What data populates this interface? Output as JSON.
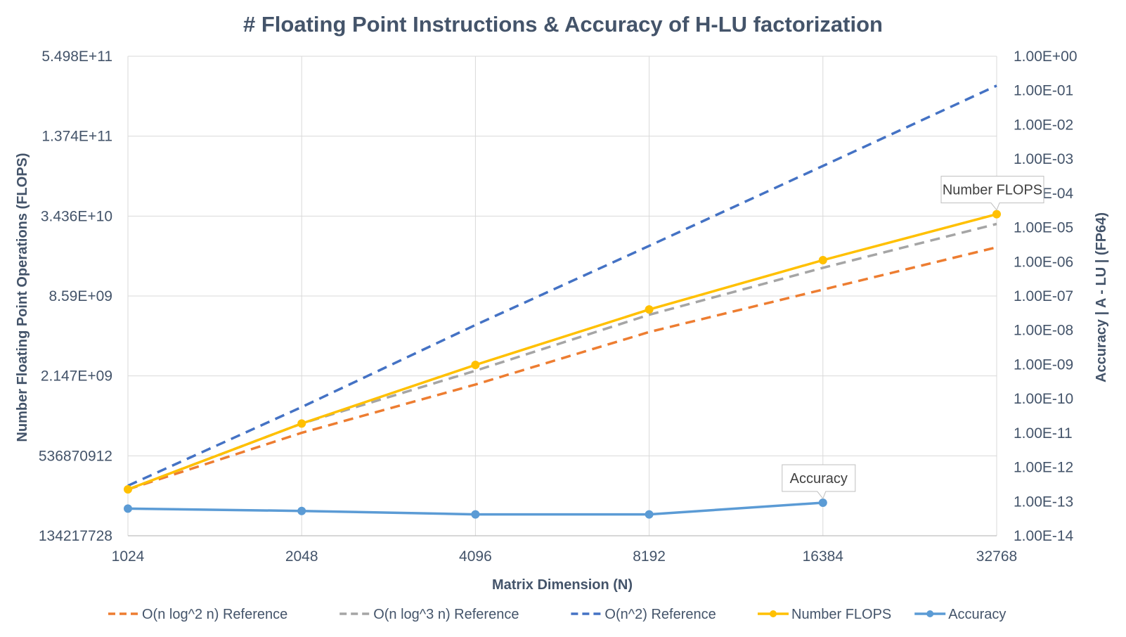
{
  "chart_data": {
    "type": "line",
    "title": "# Floating Point Instructions & Accuracy of H-LU factorization",
    "xlabel": "Matrix Dimension (N)",
    "ylabel_left": "Number Floating Point Operations (FLOPS)",
    "ylabel_right": "Accuracy | A - LU | (FP64)",
    "x_scale": "log2",
    "x": [
      1024,
      2048,
      4096,
      8192,
      16384,
      32768
    ],
    "x_tick_labels": [
      "1024",
      "2048",
      "4096",
      "8192",
      "16384",
      "32768"
    ],
    "y_left_scale": "log4",
    "y_left_range": [
      134217728,
      549755813888
    ],
    "y_left_tick_values": [
      134217728,
      536870912,
      2147483648,
      8589934592,
      34359738368,
      137438953472,
      549755813888
    ],
    "y_left_tick_labels": [
      "134217728",
      "536870912",
      "2.147E+09",
      "8.59E+09",
      "3.436E+10",
      "1.374E+11",
      "5.498E+11"
    ],
    "y_right_scale": "log10",
    "y_right_range": [
      1e-14,
      1
    ],
    "y_right_tick_values": [
      1e-14,
      1e-13,
      1e-12,
      1e-11,
      1e-10,
      1e-09,
      1e-08,
      1e-07,
      1e-06,
      1e-05,
      0.0001,
      0.001,
      0.01,
      0.1,
      1
    ],
    "y_right_tick_labels": [
      "1.00E-14",
      "1.00E-13",
      "1.00E-12",
      "1.00E-11",
      "1.00E-10",
      "1.00E-09",
      "1.00E-08",
      "1.00E-07",
      "1.00E-06",
      "1.00E-05",
      "1.00E-04",
      "1.00E-03",
      "1.00E-02",
      "1.00E-01",
      "1.00E+00"
    ],
    "grid": true,
    "legend_position": "bottom",
    "series": [
      {
        "name": "O(n log^2 n) Reference",
        "axis": "left",
        "style": "dashed",
        "color": "#ed7d31",
        "x": [
          1024,
          2048,
          4096,
          8192,
          16384,
          32768
        ],
        "values": [
          300000000,
          800000000,
          1850000000,
          4600000000,
          9600000000,
          20000000000
        ]
      },
      {
        "name": "O(n log^3 n) Reference",
        "axis": "left",
        "style": "dashed",
        "color": "#a5a5a5",
        "x": [
          1024,
          2048,
          4096,
          8192,
          16384,
          32768
        ],
        "values": [
          300000000,
          940000000,
          2350000000,
          6200000000,
          14000000000,
          30000000000
        ]
      },
      {
        "name": "O(n^2) Reference",
        "axis": "left",
        "style": "dashed",
        "color": "#4472c4",
        "x": [
          1024,
          2048,
          4096,
          8192,
          16384,
          32768
        ],
        "values": [
          320000000,
          1250000000,
          5200000000,
          20500000000,
          82000000000,
          330000000000
        ]
      },
      {
        "name": "Number FLOPS",
        "axis": "left",
        "style": "solid",
        "marker": "circle",
        "color": "#ffc000",
        "x": [
          1024,
          2048,
          4096,
          8192,
          16384,
          32768
        ],
        "values": [
          300000000,
          940000000,
          2600000000,
          6800000000,
          16000000000,
          35500000000
        ],
        "label": "Number FLOPS"
      },
      {
        "name": "Accuracy",
        "axis": "right",
        "style": "solid",
        "marker": "circle",
        "color": "#5b9bd5",
        "x": [
          1024,
          2048,
          4096,
          8192,
          16384
        ],
        "values": [
          6.2e-14,
          5.3e-14,
          4.2e-14,
          4.2e-14,
          9.2e-14
        ],
        "label": "Accuracy"
      }
    ]
  }
}
